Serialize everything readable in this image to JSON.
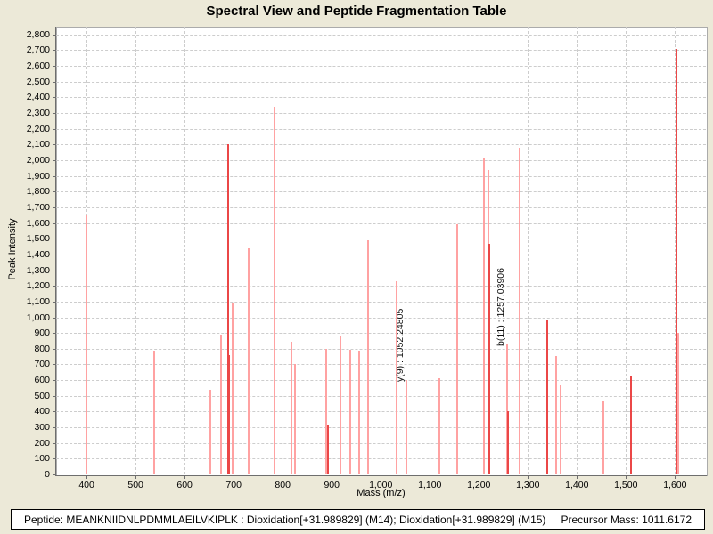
{
  "title": "Spectral View and Peptide Fragmentation Table",
  "colors": {
    "background": "#ECE9D8",
    "plot_background": "#FFFFFF",
    "grid": "#CDCDCD",
    "axis": "#6E6E6E",
    "peak_light": "#FFA2A2",
    "peak_dark": "#EB4747"
  },
  "chart_data": {
    "type": "bar",
    "title": "Spectral View and Peptide Fragmentation Table",
    "xlabel": "Mass (m/z)",
    "ylabel": "Peak Intensity",
    "xlim": [
      338,
      1663
    ],
    "ylim": [
      0,
      2850
    ],
    "x_ticks": [
      400,
      500,
      600,
      700,
      800,
      900,
      1000,
      1100,
      1200,
      1300,
      1400,
      1500,
      1600
    ],
    "y_tick_step": 100,
    "y_tick_max": 2800,
    "grid": "dashed",
    "legend": "none",
    "peaks": [
      {
        "mz": 400,
        "intensity": 1650,
        "shade": "light"
      },
      {
        "mz": 538,
        "intensity": 790,
        "shade": "light"
      },
      {
        "mz": 652,
        "intensity": 540,
        "shade": "light"
      },
      {
        "mz": 675,
        "intensity": 890,
        "shade": "light"
      },
      {
        "mz": 688,
        "intensity": 2100,
        "shade": "dark"
      },
      {
        "mz": 691,
        "intensity": 760,
        "shade": "dark"
      },
      {
        "mz": 697,
        "intensity": 1090,
        "shade": "light"
      },
      {
        "mz": 731,
        "intensity": 1440,
        "shade": "light"
      },
      {
        "mz": 784,
        "intensity": 2340,
        "shade": "light"
      },
      {
        "mz": 818,
        "intensity": 845,
        "shade": "light"
      },
      {
        "mz": 825,
        "intensity": 700,
        "shade": "light"
      },
      {
        "mz": 889,
        "intensity": 800,
        "shade": "light"
      },
      {
        "mz": 893,
        "intensity": 310,
        "shade": "dark"
      },
      {
        "mz": 917,
        "intensity": 880,
        "shade": "light"
      },
      {
        "mz": 938,
        "intensity": 795,
        "shade": "light"
      },
      {
        "mz": 956,
        "intensity": 785,
        "shade": "light"
      },
      {
        "mz": 974,
        "intensity": 1490,
        "shade": "light"
      },
      {
        "mz": 1032,
        "intensity": 1230,
        "shade": "light"
      },
      {
        "mz": 1052.25,
        "intensity": 600,
        "shade": "light"
      },
      {
        "mz": 1119,
        "intensity": 610,
        "shade": "light"
      },
      {
        "mz": 1155,
        "intensity": 1590,
        "shade": "light"
      },
      {
        "mz": 1211,
        "intensity": 2010,
        "shade": "light"
      },
      {
        "mz": 1219,
        "intensity": 1940,
        "shade": "light"
      },
      {
        "mz": 1221,
        "intensity": 1465,
        "shade": "dark"
      },
      {
        "mz": 1257.04,
        "intensity": 830,
        "shade": "light"
      },
      {
        "mz": 1259,
        "intensity": 405,
        "shade": "dark"
      },
      {
        "mz": 1284,
        "intensity": 2080,
        "shade": "light"
      },
      {
        "mz": 1340,
        "intensity": 980,
        "shade": "dark"
      },
      {
        "mz": 1358,
        "intensity": 755,
        "shade": "light"
      },
      {
        "mz": 1366,
        "intensity": 565,
        "shade": "light"
      },
      {
        "mz": 1454,
        "intensity": 465,
        "shade": "light"
      },
      {
        "mz": 1510,
        "intensity": 630,
        "shade": "dark"
      },
      {
        "mz": 1603,
        "intensity": 2710,
        "shade": "dark"
      },
      {
        "mz": 1607,
        "intensity": 900,
        "shade": "light"
      }
    ],
    "annotations": [
      {
        "text": "y(9) : 1052.24805",
        "mz": 1052.25,
        "intensity": 600
      },
      {
        "text": "b(11) : 1257.03906",
        "mz": 1257.04,
        "intensity": 830
      }
    ]
  },
  "status_bar": {
    "peptide_info": "Peptide: MEANKNIIDNLPDMMLAEILVKIPLK : Dioxidation[+31.989829] (M14); Dioxidation[+31.989829] (M15)",
    "precursor_mass": "Precursor Mass: 1011.6172"
  }
}
